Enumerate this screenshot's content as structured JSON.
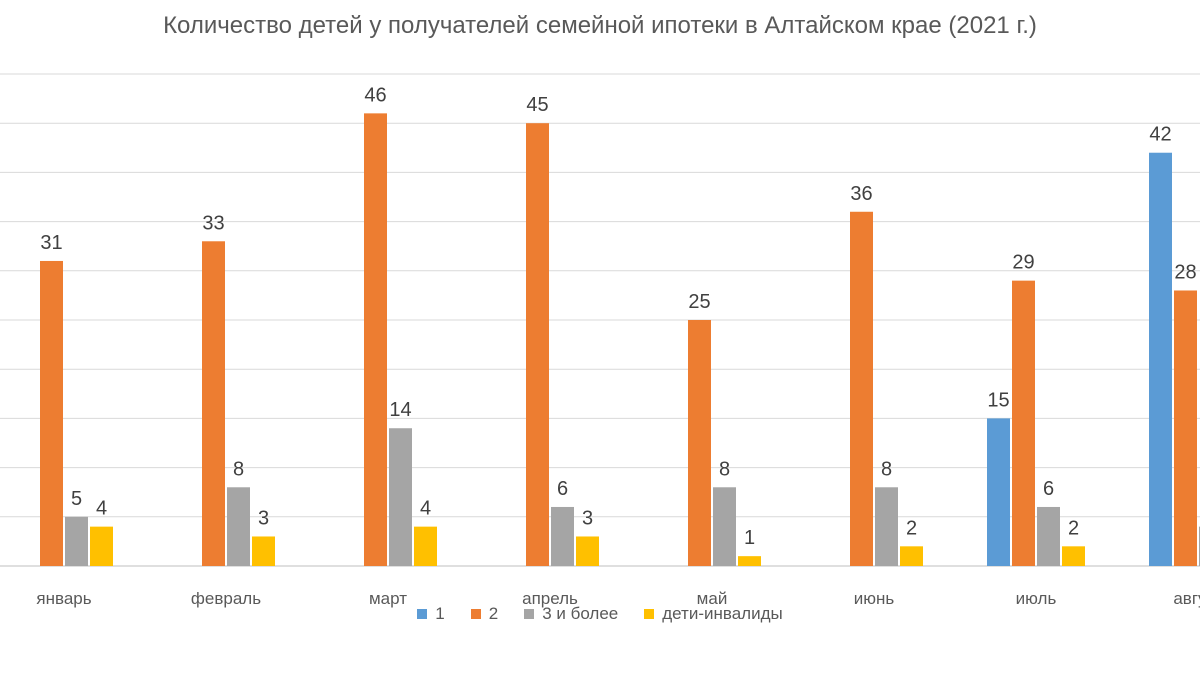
{
  "chart_data": {
    "type": "bar",
    "title": "Количество детей у получателей семейной ипотеки в Алтайском крае (2021 г.)",
    "xlabel": "",
    "ylabel": "",
    "ylim": [
      0,
      50
    ],
    "grid": true,
    "legend_position": "bottom",
    "categories": [
      "январь",
      "февраль",
      "март",
      "апрель",
      "май",
      "июнь",
      "июль",
      "август"
    ],
    "series": [
      {
        "name": "1",
        "color": "#5b9bd5",
        "values": [
          null,
          null,
          null,
          null,
          null,
          null,
          15,
          42
        ]
      },
      {
        "name": "2",
        "color": "#ed7d31",
        "values": [
          31,
          33,
          46,
          45,
          25,
          36,
          29,
          28
        ]
      },
      {
        "name": "3 и более",
        "color": "#a5a5a5",
        "values": [
          5,
          8,
          14,
          6,
          8,
          8,
          6,
          4
        ]
      },
      {
        "name": "дети-инвалиды",
        "color": "#ffc000",
        "values": [
          4,
          3,
          4,
          3,
          1,
          2,
          2,
          null
        ]
      }
    ]
  }
}
